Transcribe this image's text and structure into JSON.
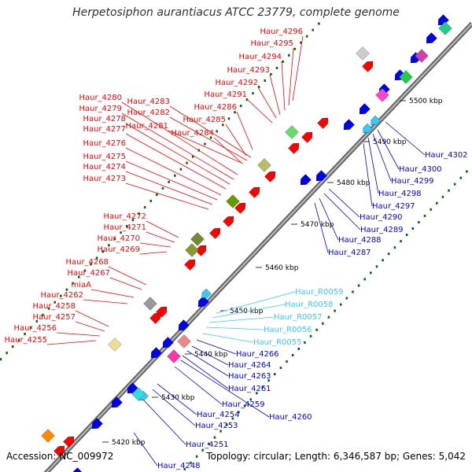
{
  "title": "Herpetosiphon aurantiacus ATCC 23779, complete genome",
  "accession": "Accession: NC_009972",
  "summary": "Topology: circular; Length: 6,346,587 bp; Genes: 5,042",
  "colors": {
    "forward": "#ff0000",
    "reverse": "#0000ee",
    "rna": "#33ccff",
    "backbone": "#888888",
    "tick": "#006600"
  },
  "scale": {
    "ticks": [
      "5420 kbp",
      "5430 kbp",
      "5440 kbp",
      "5450 kbp",
      "5460 kbp",
      "5470 kbp",
      "5480 kbp",
      "5490 kbp",
      "5500 kbp"
    ]
  },
  "forward_genes": [
    "Haur_4296",
    "Haur_4295",
    "Haur_4294",
    "Haur_4293",
    "Haur_4292",
    "Haur_4291",
    "Haur_4286",
    "Haur_4285",
    "Haur_4284",
    "Haur_4283",
    "Haur_4282",
    "Haur_4281",
    "Haur_4280",
    "Haur_4279",
    "Haur_4278",
    "Haur_4277",
    "Haur_4276",
    "Haur_4275",
    "Haur_4274",
    "Haur_4273",
    "Haur_4272",
    "Haur_4271",
    "Haur_4270",
    "Haur_4269",
    "Haur_4268",
    "Haur_4267",
    "miaA",
    "Haur_4262",
    "Haur_4258",
    "Haur_4257",
    "Haur_4256",
    "Haur_4255"
  ],
  "reverse_genes": [
    "Haur_4302",
    "Haur_4300",
    "Haur_4299",
    "Haur_4298",
    "Haur_4297",
    "Haur_4290",
    "Haur_4289",
    "Haur_4288",
    "Haur_4287",
    "Haur_4266",
    "Haur_4264",
    "Haur_4263",
    "Haur_4261",
    "Haur_4260",
    "Haur_4259",
    "Haur_4254",
    "Haur_4253",
    "Haur_4251",
    "Haur_4248"
  ],
  "rna_genes": [
    "Haur_R0059",
    "Haur_R0058",
    "Haur_R0057",
    "Haur_R0056",
    "Haur_R0055"
  ]
}
